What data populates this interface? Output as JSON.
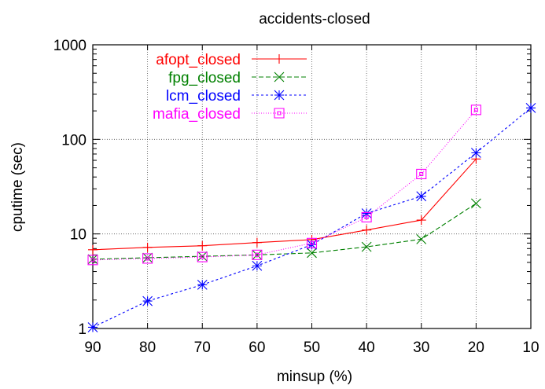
{
  "chart_data": {
    "type": "line",
    "title": "accidents-closed",
    "xlabel": "minsup (%)",
    "ylabel": "cputime (sec)",
    "x_scale": "linear-reversed",
    "y_scale": "log",
    "xlim": [
      90,
      10
    ],
    "ylim": [
      1,
      1000
    ],
    "x_ticks": [
      90,
      80,
      70,
      60,
      50,
      40,
      30,
      20,
      10
    ],
    "y_ticks": [
      1,
      10,
      100,
      1000
    ],
    "grid": true,
    "legend_position": "top-left",
    "series": [
      {
        "name": "afopt_closed",
        "color": "#ff0000",
        "marker": "plus",
        "dash": "",
        "points": [
          [
            90,
            6.8
          ],
          [
            80,
            7.2
          ],
          [
            70,
            7.5
          ],
          [
            60,
            8.1
          ],
          [
            50,
            8.7
          ],
          [
            40,
            11.0
          ],
          [
            30,
            14.0
          ],
          [
            20,
            62.0
          ]
        ]
      },
      {
        "name": "fpg_closed",
        "color": "#008000",
        "marker": "x",
        "dash": "6,3",
        "points": [
          [
            90,
            5.4
          ],
          [
            80,
            5.6
          ],
          [
            70,
            5.8
          ],
          [
            60,
            6.0
          ],
          [
            50,
            6.3
          ],
          [
            40,
            7.3
          ],
          [
            30,
            8.8
          ],
          [
            20,
            21.0
          ]
        ]
      },
      {
        "name": "lcm_closed",
        "color": "#0000ff",
        "marker": "asterisk",
        "dash": "3,3",
        "points": [
          [
            90,
            1.03
          ],
          [
            80,
            1.95
          ],
          [
            70,
            2.9
          ],
          [
            60,
            4.6
          ],
          [
            50,
            7.7
          ],
          [
            40,
            16.5
          ],
          [
            30,
            25.0
          ],
          [
            20,
            72.0
          ],
          [
            10,
            215.0
          ]
        ]
      },
      {
        "name": "mafia_closed",
        "color": "#ff00ff",
        "marker": "square",
        "dash": "1,2",
        "points": [
          [
            90,
            5.3
          ],
          [
            80,
            5.5
          ],
          [
            70,
            5.7
          ],
          [
            60,
            6.0
          ],
          [
            50,
            8.0
          ],
          [
            40,
            15.0
          ],
          [
            30,
            43.0
          ],
          [
            20,
            205.0
          ]
        ]
      }
    ]
  }
}
